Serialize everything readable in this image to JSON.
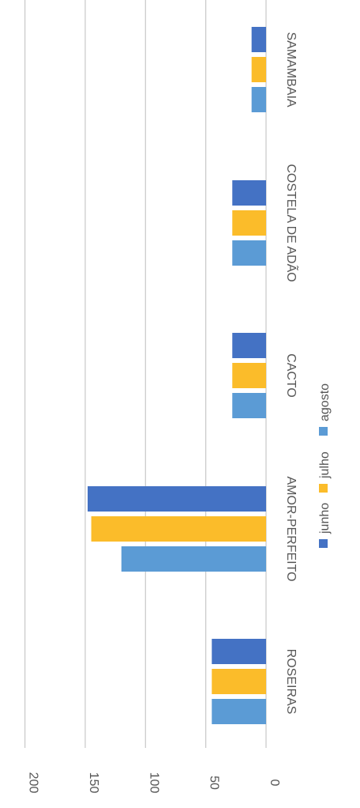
{
  "chart_data": {
    "type": "bar",
    "orientation": "horizontal",
    "categories": [
      "ROSEIRAS",
      "AMOR-PERFEITO",
      "CACTO",
      "COSTELA DE ADÃO",
      "SAMAMBAIA"
    ],
    "series": [
      {
        "name": "junho",
        "color": "#4472C4",
        "values": [
          45,
          148,
          28,
          28,
          12
        ]
      },
      {
        "name": "julho",
        "color": "#FBBC2A",
        "values": [
          45,
          145,
          28,
          28,
          12
        ]
      },
      {
        "name": "agosto",
        "color": "#5B9BD5",
        "values": [
          45,
          120,
          28,
          28,
          12
        ]
      }
    ],
    "value_axis": {
      "min": 0,
      "max": 200,
      "ticks": [
        "0",
        "50",
        "100",
        "150",
        "200"
      ]
    },
    "grid": true,
    "legend": "bottom",
    "text_rotation": "rotated 90° clockwise (image is a rotated column chart)"
  }
}
